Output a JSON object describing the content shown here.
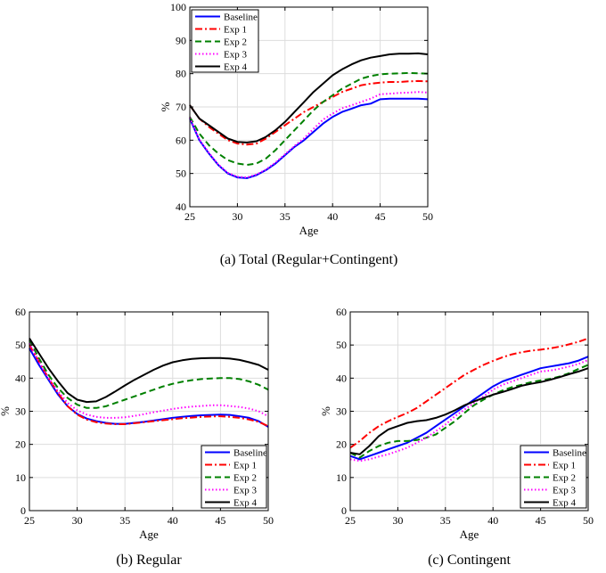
{
  "chart_data": [
    {
      "type": "line",
      "caption": "(a) Total (Regular+Contingent)",
      "xlabel": "Age",
      "ylabel": "%",
      "xlim": [
        25,
        50
      ],
      "ylim": [
        40,
        100
      ],
      "xticks": [
        25,
        30,
        35,
        40,
        45,
        50
      ],
      "yticks": [
        40,
        50,
        60,
        70,
        80,
        90,
        100
      ],
      "grid": true,
      "legend_position": "top-left",
      "x": [
        25,
        26,
        27,
        28,
        29,
        30,
        31,
        32,
        33,
        34,
        35,
        36,
        37,
        38,
        39,
        40,
        41,
        42,
        43,
        44,
        45,
        46,
        47,
        48,
        49,
        50
      ],
      "series": [
        {
          "name": "Baseline",
          "color": "#0000ff",
          "dash": "solid",
          "values": [
            66.5,
            60,
            56,
            52.5,
            50,
            48.8,
            48.6,
            49.5,
            51,
            53,
            55.5,
            58,
            60,
            62.5,
            65,
            67,
            68.5,
            69.5,
            70.5,
            71,
            72.3,
            72.5,
            72.5,
            72.5,
            72.5,
            72.3
          ]
        },
        {
          "name": "Exp 1",
          "color": "#ff0000",
          "dash": "dashdot",
          "values": [
            70.5,
            66.5,
            64,
            62,
            60,
            59,
            58.7,
            59,
            60.5,
            62.5,
            64.5,
            66.5,
            68.5,
            70,
            71.5,
            73,
            74.5,
            75.5,
            76.5,
            77,
            77.3,
            77.5,
            77.5,
            77.7,
            77.8,
            77.7
          ]
        },
        {
          "name": "Exp 2",
          "color": "#008000",
          "dash": "dashed",
          "values": [
            67,
            62,
            58.5,
            56,
            54,
            53,
            52.6,
            53,
            54.5,
            57,
            60,
            63,
            66,
            69,
            71.5,
            73.5,
            75.5,
            77,
            78.5,
            79.3,
            79.8,
            80,
            80.1,
            80.2,
            80.1,
            80
          ]
        },
        {
          "name": "Exp 3",
          "color": "#ff00ff",
          "dash": "dotted",
          "values": [
            66.8,
            60.2,
            56.2,
            52.7,
            50.2,
            49,
            48.8,
            49.7,
            51.2,
            53.3,
            55.8,
            58.3,
            60.6,
            63.4,
            66.2,
            68,
            69.6,
            70.5,
            71.5,
            72.5,
            73.8,
            74,
            74.2,
            74.3,
            74.5,
            74.3
          ]
        },
        {
          "name": "Exp 4",
          "color": "#000000",
          "dash": "solid",
          "values": [
            70.5,
            66.5,
            64.5,
            62.5,
            60.5,
            59.5,
            59.3,
            59.7,
            61,
            63,
            65.5,
            68.5,
            71.5,
            74.5,
            77,
            79.5,
            81.3,
            82.8,
            84,
            84.8,
            85.3,
            85.8,
            86,
            86,
            86.1,
            85.8
          ]
        }
      ]
    },
    {
      "type": "line",
      "caption": "(b) Regular",
      "xlabel": "Age",
      "ylabel": "%",
      "xlim": [
        25,
        50
      ],
      "ylim": [
        0,
        60
      ],
      "xticks": [
        25,
        30,
        35,
        40,
        45,
        50
      ],
      "yticks": [
        0,
        10,
        20,
        30,
        40,
        50,
        60
      ],
      "grid": true,
      "legend_position": "bottom-right",
      "x": [
        25,
        26,
        27,
        28,
        29,
        30,
        31,
        32,
        33,
        34,
        35,
        36,
        37,
        38,
        39,
        40,
        41,
        42,
        43,
        44,
        45,
        46,
        47,
        48,
        49,
        50
      ],
      "series": [
        {
          "name": "Baseline",
          "color": "#0000ff",
          "dash": "solid",
          "values": [
            49,
            44,
            39.5,
            35,
            31.5,
            29.2,
            27.8,
            27,
            26.5,
            26.2,
            26.2,
            26.5,
            26.8,
            27.2,
            27.6,
            28,
            28.3,
            28.6,
            28.8,
            28.9,
            29,
            28.9,
            28.5,
            28,
            27,
            25.3
          ]
        },
        {
          "name": "Exp 1",
          "color": "#ff0000",
          "dash": "dashdot",
          "values": [
            50,
            45,
            40,
            35.5,
            31.5,
            29,
            27.5,
            26.7,
            26.3,
            26.1,
            26.1,
            26.4,
            26.7,
            27,
            27.3,
            27.6,
            27.9,
            28.1,
            28.3,
            28.4,
            28.5,
            28.3,
            28,
            27.5,
            26.8,
            25.5
          ]
        },
        {
          "name": "Exp 2",
          "color": "#008000",
          "dash": "dashed",
          "values": [
            51.5,
            46,
            41,
            37,
            34,
            32,
            31,
            31,
            31.5,
            32.5,
            33.5,
            34.5,
            35.5,
            36.5,
            37.5,
            38.3,
            38.9,
            39.4,
            39.7,
            39.9,
            40,
            40,
            39.7,
            39,
            38,
            36.5
          ]
        },
        {
          "name": "Exp 3",
          "color": "#ff00ff",
          "dash": "dotted",
          "values": [
            50.5,
            45,
            40,
            36,
            32.5,
            30.3,
            29,
            28.3,
            28,
            28,
            28.2,
            28.6,
            29.1,
            29.7,
            30.2,
            30.7,
            31.1,
            31.4,
            31.6,
            31.8,
            31.8,
            31.6,
            31.3,
            30.8,
            30,
            28.5
          ]
        },
        {
          "name": "Exp 4",
          "color": "#000000",
          "dash": "solid",
          "values": [
            52,
            47.5,
            43,
            39,
            35.5,
            33.5,
            32.8,
            33,
            34.3,
            36,
            37.8,
            39.5,
            41,
            42.5,
            43.8,
            44.8,
            45.4,
            45.8,
            46,
            46.1,
            46.1,
            45.9,
            45.5,
            44.8,
            44,
            42.5
          ]
        }
      ]
    },
    {
      "type": "line",
      "caption": "(c) Contingent",
      "xlabel": "Age",
      "ylabel": "%",
      "xlim": [
        25,
        50
      ],
      "ylim": [
        0,
        60
      ],
      "xticks": [
        25,
        30,
        35,
        40,
        45,
        50
      ],
      "yticks": [
        0,
        10,
        20,
        30,
        40,
        50,
        60
      ],
      "grid": true,
      "legend_position": "bottom-right",
      "x": [
        25,
        26,
        27,
        28,
        29,
        30,
        31,
        32,
        33,
        34,
        35,
        36,
        37,
        38,
        39,
        40,
        41,
        42,
        43,
        44,
        45,
        46,
        47,
        48,
        49,
        50
      ],
      "series": [
        {
          "name": "Baseline",
          "color": "#0000ff",
          "dash": "solid",
          "values": [
            16.5,
            15.5,
            16.5,
            17.5,
            18.5,
            19.5,
            20.5,
            22,
            23.5,
            25.5,
            27.5,
            29.5,
            31.5,
            33.5,
            35.5,
            37.5,
            39,
            40,
            41,
            42,
            43,
            43.5,
            44,
            44.5,
            45.3,
            46.5
          ]
        },
        {
          "name": "Exp 1",
          "color": "#ff0000",
          "dash": "dashdot",
          "values": [
            19,
            21,
            23.5,
            25.5,
            27,
            28.3,
            29.5,
            31,
            33,
            35,
            37,
            39,
            41,
            42.5,
            44,
            45.2,
            46.3,
            47.2,
            47.8,
            48.3,
            48.6,
            49,
            49.5,
            50.2,
            51,
            52
          ]
        },
        {
          "name": "Exp 2",
          "color": "#008000",
          "dash": "dashed",
          "values": [
            17.5,
            16,
            18,
            19.5,
            20.5,
            21,
            21,
            21.3,
            22,
            23,
            25,
            27,
            29.5,
            31.8,
            33.5,
            35,
            36.3,
            37.3,
            38,
            38.8,
            39.3,
            39.8,
            40.5,
            41.5,
            42.8,
            44
          ]
        },
        {
          "name": "Exp 3",
          "color": "#ff00ff",
          "dash": "dotted",
          "values": [
            15.5,
            15,
            15.5,
            16.3,
            17,
            18,
            19,
            20.5,
            22,
            24,
            26,
            28.5,
            30.5,
            32.5,
            34.5,
            36.5,
            38,
            39,
            40,
            41,
            42,
            42.3,
            42.8,
            43.5,
            44.3,
            45.5
          ]
        },
        {
          "name": "Exp 4",
          "color": "#000000",
          "dash": "solid",
          "values": [
            17.5,
            17,
            19.5,
            22.5,
            24.5,
            25.5,
            26.5,
            27,
            27.3,
            28,
            29,
            30.3,
            31.8,
            33,
            34,
            35,
            35.8,
            36.7,
            37.7,
            38.3,
            38.8,
            39.5,
            40.3,
            41.2,
            42,
            43
          ]
        }
      ]
    }
  ]
}
